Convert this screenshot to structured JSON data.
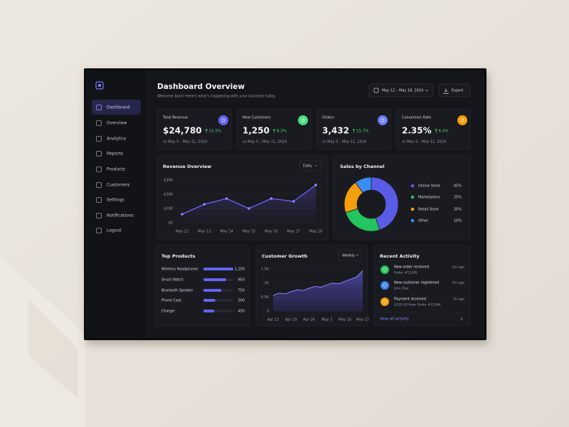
{
  "sidebar": {
    "nav": [
      "Dashboard",
      "Overview",
      "Analytics",
      "Reports",
      "Products",
      "Customers",
      "Settings",
      "Notifications",
      "Logout"
    ]
  },
  "header": {
    "title": "Dashboard Overview",
    "subtitle": "Welcome back! Here's what's happening with your business today.",
    "date_range": "May 12 – May 18, 2024",
    "export": "Export"
  },
  "kpis": [
    {
      "label": "Total Revenue",
      "value": "$24,780",
      "change": "12.5%",
      "comparison": "vs May 5 – May 11, 2024",
      "color": "#6366f1"
    },
    {
      "label": "New Customers",
      "value": "1,250",
      "change": "8.3%",
      "comparison": "vs May 5 – May 11, 2024",
      "color": "#4ade80"
    },
    {
      "label": "Orders",
      "value": "3,432",
      "change": "15.7%",
      "comparison": "vs May 5 – May 11, 2024",
      "color": "#6d7cf5"
    },
    {
      "label": "Conversion Rate",
      "value": "2.35%",
      "change": "6.4%",
      "comparison": "vs May 5 – May 11, 2024",
      "color": "#f59e0b"
    }
  ],
  "revenue_chart": {
    "type": "line",
    "title": "Revenue Overview",
    "period": "Daily",
    "categories": [
      "May 12",
      "May 13",
      "May 14",
      "May 15",
      "May 16",
      "May 17",
      "May 18"
    ],
    "values": [
      6000,
      13000,
      17000,
      10000,
      17000,
      15000,
      26500
    ],
    "ylim": [
      0,
      30000
    ],
    "yticks": [
      {
        "value": 0,
        "label": "$0"
      },
      {
        "value": 10000,
        "label": "$10K"
      },
      {
        "value": 20000,
        "label": "$20K"
      },
      {
        "value": 30000,
        "label": "$30K"
      }
    ],
    "color": "#6c63ff",
    "grid": true
  },
  "sales_chart": {
    "type": "pie",
    "title": "Sales by Channel",
    "categories": [
      "Online Store",
      "Marketplace",
      "Retail Store",
      "Other"
    ],
    "values": [
      45,
      25,
      20,
      10
    ],
    "value_labels": [
      "45%",
      "25%",
      "20%",
      "10%"
    ],
    "colors": [
      "#5b5ce6",
      "#22c55e",
      "#f59e0b",
      "#3b8df6"
    ]
  },
  "top_products": {
    "type": "bar",
    "title": "Top Products",
    "categories": [
      "Wireless Headphones",
      "Smart Watch",
      "Bluetooth Speaker",
      "Phone Case",
      "Charger"
    ],
    "values": [
      1250,
      950,
      750,
      500,
      450
    ],
    "value_labels": [
      "1,250",
      "950",
      "750",
      "500",
      "450"
    ],
    "color": "#6366f1"
  },
  "growth_chart": {
    "type": "area",
    "title": "Customer Growth",
    "period": "Weekly",
    "categories": [
      "Apr 12",
      null,
      null,
      "Apr 19",
      null,
      null,
      "Apr 26",
      null,
      null,
      "May 3",
      null,
      null,
      "May 10",
      null,
      null,
      "May 17"
    ],
    "values": [
      560,
      640,
      610,
      690,
      760,
      730,
      810,
      880,
      850,
      930,
      1000,
      970,
      1060,
      1140,
      1220,
      1440
    ],
    "ylim": [
      0,
      1500
    ],
    "yticks": [
      0,
      {
        "value": 500,
        "label": "0.5K"
      },
      {
        "value": 1000,
        "label": "1K"
      },
      {
        "value": 1500,
        "label": "1.5K"
      }
    ],
    "color": "#6c63ff",
    "grid": true
  },
  "activity": {
    "title": "Recent Activity",
    "items": [
      {
        "title": "New order received",
        "detail": "Order #12345",
        "time": "2m ago",
        "color": "#22c55e"
      },
      {
        "title": "New customer registered",
        "detail": "John Doe",
        "time": "5m ago",
        "color": "#3b82f6"
      },
      {
        "title": "Payment received",
        "detail": "$120.00 from Order #12344",
        "time": "1h ago",
        "color": "#f59e0b"
      }
    ],
    "link": "View all activity"
  }
}
